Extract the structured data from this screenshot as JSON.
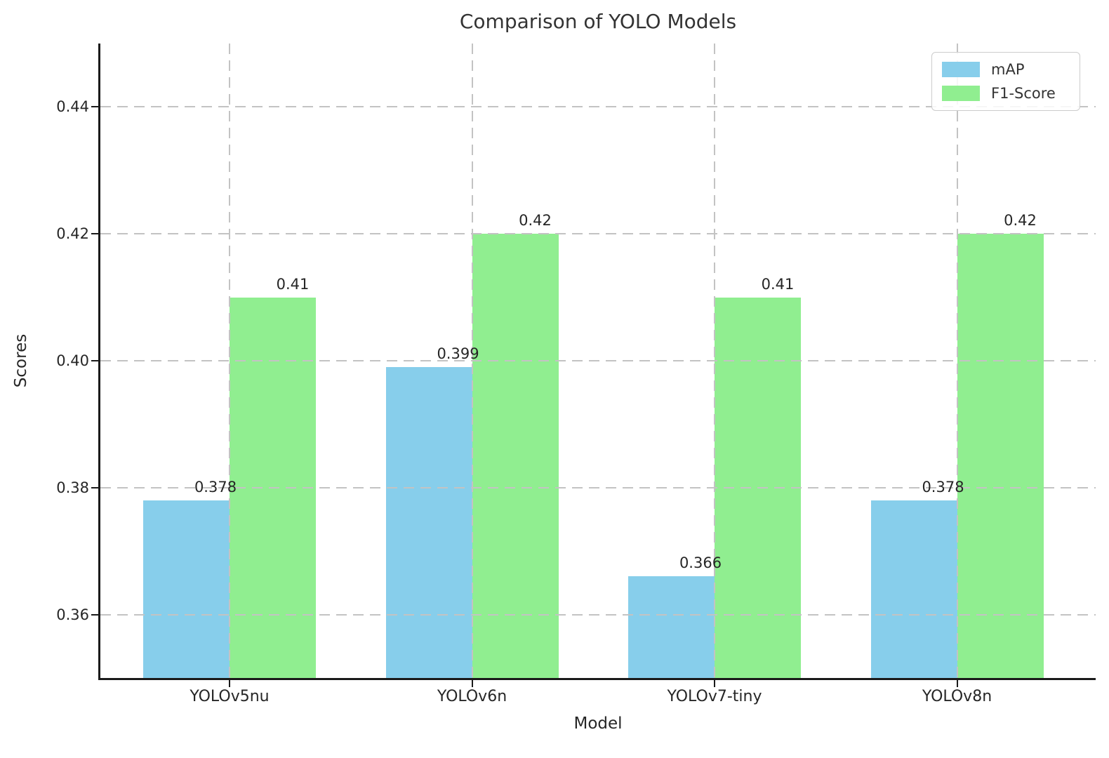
{
  "chart_data": {
    "type": "bar",
    "title": "Comparison of YOLO Models",
    "xlabel": "Model",
    "ylabel": "Scores",
    "categories": [
      "YOLOv5nu",
      "YOLOv6n",
      "YOLOv7-tiny",
      "YOLOv8n"
    ],
    "series": [
      {
        "name": "mAP",
        "color": "#87CEEB",
        "values": [
          0.378,
          0.399,
          0.366,
          0.378
        ],
        "value_labels": [
          "0.378",
          "0.399",
          "0.366",
          "0.378"
        ]
      },
      {
        "name": "F1-Score",
        "color": "#90EE90",
        "values": [
          0.41,
          0.42,
          0.41,
          0.42
        ],
        "value_labels": [
          "0.41",
          "0.42",
          "0.41",
          "0.42"
        ]
      }
    ],
    "ylim": [
      0.35,
      0.45
    ],
    "yticks": [
      {
        "value": 0.36,
        "label": "0.36"
      },
      {
        "value": 0.38,
        "label": "0.38"
      },
      {
        "value": 0.4,
        "label": "0.40"
      },
      {
        "value": 0.42,
        "label": "0.42"
      },
      {
        "value": 0.44,
        "label": "0.44"
      }
    ],
    "grid": {
      "visible": true,
      "style": "dashed",
      "axes": "both",
      "above_bars": true,
      "color": "#c3c3c3"
    },
    "legend": {
      "position": "upper-right",
      "entries": [
        "mAP",
        "F1-Score"
      ]
    },
    "axis_color": "#1a1a1a",
    "text_color": "#262626",
    "background": "#ffffff"
  }
}
